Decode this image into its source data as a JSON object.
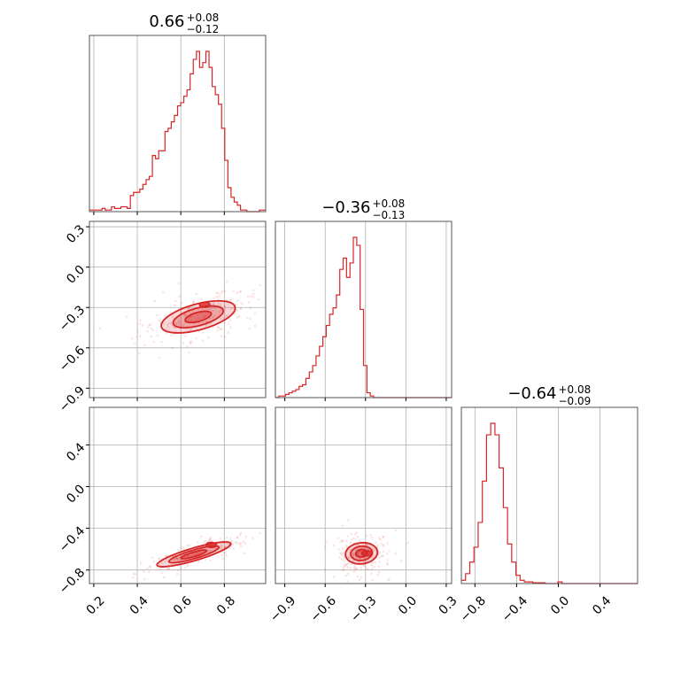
{
  "chart_data": {
    "type": "corner",
    "color": "#d62728",
    "grid": true,
    "titles": [
      {
        "main": "0.66",
        "plus": "+0.08",
        "minus": "−0.12"
      },
      {
        "main": "−0.36",
        "plus": "+0.08",
        "minus": "−0.13"
      },
      {
        "main": "−0.64",
        "plus": "+0.08",
        "minus": "−0.09"
      }
    ],
    "parameters": [
      {
        "range": [
          0.18,
          0.99
        ],
        "ticks": [
          0.2,
          0.4,
          0.6,
          0.8
        ],
        "tick_labels": [
          "0.2",
          "0.4",
          "0.6",
          "0.8"
        ],
        "median": 0.66,
        "hist_values": [
          0.01,
          0.01,
          0.01,
          0.01,
          0.02,
          0.01,
          0.01,
          0.03,
          0.02,
          0.02,
          0.03,
          0.03,
          0.02,
          0.1,
          0.12,
          0.12,
          0.14,
          0.17,
          0.2,
          0.22,
          0.35,
          0.33,
          0.38,
          0.38,
          0.5,
          0.52,
          0.56,
          0.6,
          0.66,
          0.68,
          0.72,
          0.76,
          0.86,
          0.95,
          1.0,
          0.9,
          0.93,
          1.0,
          0.9,
          0.78,
          0.73,
          0.67,
          0.52,
          0.32,
          0.15,
          0.09,
          0.06,
          0.04,
          0.01,
          0.01,
          0.0,
          0.0,
          0.0,
          0.0,
          0.01,
          0.01
        ]
      },
      {
        "range": [
          -0.97,
          0.34
        ],
        "ticks": [
          -0.9,
          -0.6,
          -0.3,
          0.0,
          0.3
        ],
        "tick_labels": [
          "−0.9",
          "−0.6",
          "−0.3",
          "0.0",
          "0.3"
        ],
        "median": -0.36,
        "hist_values": [
          0.0,
          0.01,
          0.01,
          0.02,
          0.03,
          0.04,
          0.05,
          0.07,
          0.08,
          0.12,
          0.16,
          0.2,
          0.26,
          0.32,
          0.38,
          0.45,
          0.52,
          0.56,
          0.64,
          0.8,
          0.87,
          0.75,
          0.84,
          1.0,
          0.95,
          0.55,
          0.2,
          0.03,
          0.01,
          0.0,
          0.0,
          0.0,
          0.0,
          0.0,
          0.0,
          0.0,
          0.0,
          0.0,
          0.0,
          0.0,
          0.0,
          0.0,
          0.0,
          0.0,
          0.0,
          0.0,
          0.0,
          0.0,
          0.0,
          0.0,
          0.0,
          0.0
        ]
      },
      {
        "range": [
          -0.93,
          0.76
        ],
        "ticks": [
          -0.8,
          -0.4,
          0.0,
          0.4
        ],
        "tick_labels": [
          "−0.8",
          "−0.4",
          "0.0",
          "0.4"
        ],
        "median": -0.64,
        "hist_values": [
          0.02,
          0.06,
          0.13,
          0.22,
          0.37,
          0.62,
          0.9,
          0.97,
          0.9,
          0.7,
          0.46,
          0.24,
          0.13,
          0.05,
          0.02,
          0.01,
          0.01,
          0.005,
          0.005,
          0.005,
          0.0,
          0.0,
          0.0,
          0.01,
          0.0,
          0.0,
          0.0,
          0.0,
          0.0,
          0.0,
          0.0,
          0.0,
          0.0,
          0.0,
          0.0,
          0.0,
          0.0,
          0.0,
          0.0,
          0.0,
          0.0,
          0.0
        ]
      }
    ],
    "joint": [
      {
        "i": 0,
        "j": 1,
        "center": [
          0.68,
          -0.37
        ],
        "sigma": [
          0.1,
          0.07
        ],
        "rho": 0.55,
        "mode": [
          0.71,
          -0.28
        ]
      },
      {
        "i": 0,
        "j": 2,
        "center": [
          0.66,
          -0.65
        ],
        "sigma": [
          0.1,
          0.07
        ],
        "rho": 0.85,
        "mode": [
          0.74,
          -0.56
        ]
      },
      {
        "i": 1,
        "j": 2,
        "center": [
          -0.33,
          -0.64
        ],
        "sigma": [
          0.07,
          0.06
        ],
        "rho": 0.1,
        "mode": [
          -0.29,
          -0.64
        ]
      }
    ]
  }
}
